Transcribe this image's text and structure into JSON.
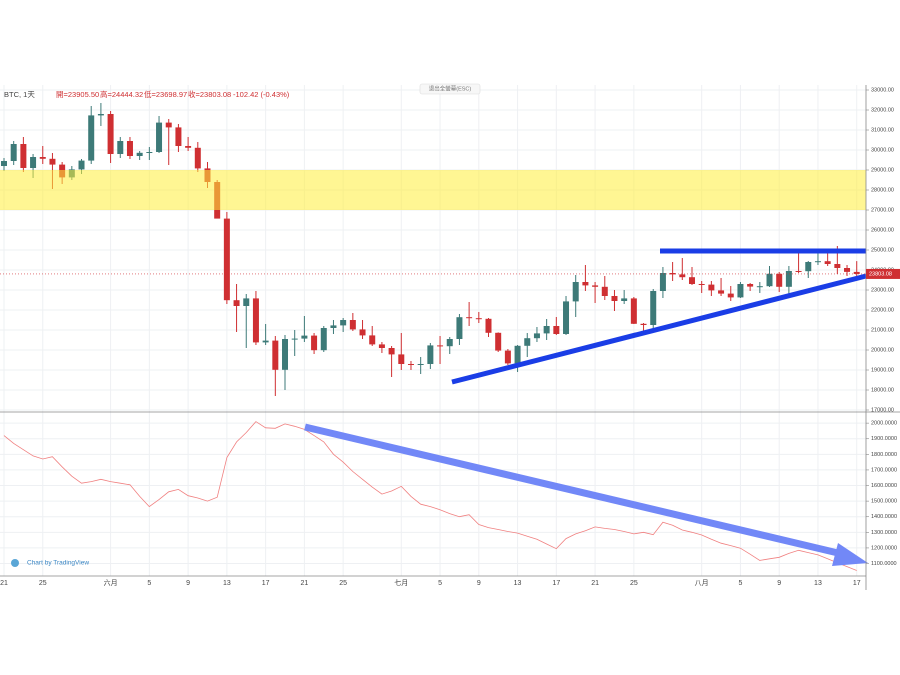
{
  "header": {
    "symbol": "BTC, 1天",
    "open": "開=23905.50",
    "high": "高=24444.32",
    "low": "低=23698.97",
    "close": "收=23803.08",
    "change": "-102.42 (-0.43%)",
    "fullscreen_button": "退出全螢幕(ESC)",
    "watermark": "Chart by TradingView"
  },
  "last_price": 23803.08,
  "chart_data": [
    {
      "type": "candlestick",
      "up_color": "#3d7a78",
      "down_color": "#cf2f32",
      "grid": true,
      "categories": [
        "21",
        null,
        null,
        null,
        "25",
        null,
        null,
        null,
        null,
        null,
        null,
        "六月",
        null,
        null,
        null,
        "5",
        null,
        null,
        null,
        "9",
        null,
        null,
        null,
        "13",
        null,
        null,
        null,
        "17",
        null,
        null,
        null,
        "21",
        null,
        null,
        null,
        "25",
        null,
        null,
        null,
        null,
        null,
        "七月",
        null,
        null,
        null,
        "5",
        null,
        null,
        null,
        "9",
        null,
        null,
        null,
        "13",
        null,
        null,
        null,
        "17",
        null,
        null,
        null,
        "21",
        null,
        null,
        null,
        "25",
        null,
        null,
        null,
        null,
        null,
        null,
        "八月",
        null,
        null,
        null,
        "5",
        null,
        null,
        null,
        "9",
        null,
        null,
        null,
        "13",
        null,
        null,
        null,
        "17"
      ],
      "open": [
        29200,
        29450,
        30300,
        29100,
        29650,
        29560,
        29270,
        28630,
        29030,
        29470,
        31730,
        31800,
        29800,
        30450,
        29700,
        29860,
        29900,
        31370,
        31130,
        30200,
        30110,
        29080,
        28400,
        26570,
        22490,
        22200,
        22580,
        20380,
        20470,
        19010,
        20550,
        20570,
        20720,
        19990,
        21100,
        21230,
        21500,
        21030,
        20730,
        20280,
        20100,
        19780,
        19300,
        19250,
        19300,
        20230,
        20190,
        20550,
        21640,
        21590,
        21560,
        20860,
        19970,
        19330,
        20210,
        20590,
        20830,
        21200,
        20800,
        22430,
        23400,
        23230,
        23160,
        22700,
        22450,
        22580,
        21310,
        21250,
        22950,
        23850,
        23780,
        23640,
        23300,
        23270,
        22980,
        22820,
        22630,
        23300,
        23170,
        23190,
        23810,
        23160,
        23950,
        23940,
        24400,
        24440,
        24300,
        24100,
        23905.5
      ],
      "high": [
        29600,
        30450,
        30650,
        29800,
        30200,
        29850,
        29400,
        29200,
        29550,
        32200,
        32350,
        31950,
        30650,
        30650,
        29950,
        30150,
        31700,
        31550,
        31300,
        30650,
        30400,
        29400,
        28500,
        26900,
        23300,
        22800,
        22950,
        21300,
        20700,
        20750,
        21000,
        21700,
        20850,
        21200,
        21500,
        21600,
        21850,
        21500,
        21200,
        20400,
        20200,
        20850,
        19450,
        19650,
        20350,
        20700,
        20650,
        21800,
        22400,
        21900,
        21600,
        20880,
        20050,
        20250,
        20850,
        21150,
        21550,
        21650,
        22700,
        23750,
        24250,
        23400,
        23700,
        23000,
        23000,
        22650,
        21350,
        23050,
        24150,
        24400,
        24600,
        24150,
        23450,
        23450,
        23600,
        23200,
        23400,
        23350,
        23400,
        24200,
        23900,
        24200,
        24900,
        24450,
        24900,
        25000,
        25200,
        24250,
        24444.32
      ],
      "low": [
        28950,
        29250,
        28900,
        28600,
        29300,
        28050,
        28300,
        28500,
        28800,
        29300,
        31200,
        29350,
        29600,
        29550,
        29500,
        29500,
        29850,
        29250,
        29900,
        29950,
        28900,
        28100,
        26600,
        22300,
        20900,
        20100,
        20250,
        20250,
        17700,
        18000,
        19700,
        20400,
        19800,
        19900,
        20800,
        20900,
        20950,
        20550,
        20200,
        19850,
        18650,
        19000,
        19000,
        18800,
        19050,
        19300,
        19800,
        20250,
        21200,
        21350,
        20650,
        19900,
        19250,
        18900,
        19650,
        20400,
        20500,
        20750,
        20750,
        21650,
        22950,
        22350,
        22500,
        21950,
        22300,
        21300,
        20750,
        21050,
        22600,
        23450,
        23500,
        23250,
        22850,
        22700,
        22700,
        22450,
        22600,
        22950,
        22850,
        23150,
        22900,
        22700,
        23850,
        23600,
        24250,
        24200,
        23800,
        23700,
        23698.97
      ],
      "close": [
        29450,
        30300,
        29100,
        29650,
        29560,
        29270,
        28630,
        29030,
        29470,
        31730,
        31800,
        29800,
        30450,
        29700,
        29860,
        29900,
        31370,
        31130,
        30200,
        30110,
        29080,
        28400,
        26570,
        22490,
        22200,
        22580,
        20380,
        20470,
        19010,
        20550,
        20570,
        20720,
        19990,
        21100,
        21230,
        21500,
        21030,
        20730,
        20280,
        20100,
        19780,
        19300,
        19250,
        19300,
        20230,
        20190,
        20550,
        21640,
        21590,
        21560,
        20860,
        19970,
        19330,
        20210,
        20590,
        20830,
        21200,
        20800,
        22430,
        23400,
        23230,
        23160,
        22700,
        22450,
        22580,
        21310,
        21250,
        22950,
        23850,
        23780,
        23640,
        23300,
        23270,
        22980,
        22820,
        22630,
        23300,
        23170,
        23190,
        23810,
        23160,
        23950,
        23940,
        24400,
        24440,
        24300,
        24100,
        23905.5,
        23803.08
      ],
      "ylim": [
        16900,
        33250
      ],
      "yticks": [
        {
          "value": 17000,
          "label": "17000.00"
        },
        {
          "value": 18000,
          "label": "18000.00"
        },
        {
          "value": 19000,
          "label": "19000.00"
        },
        {
          "value": 20000,
          "label": "20000.00"
        },
        {
          "value": 21000,
          "label": "21000.00"
        },
        {
          "value": 22000,
          "label": "22000.00"
        },
        {
          "value": 23000,
          "label": "23000.00"
        },
        {
          "value": 24000,
          "label": "24000.00"
        },
        {
          "value": 25000,
          "label": "25000.00"
        },
        {
          "value": 26000,
          "label": "26000.00"
        },
        {
          "value": 27000,
          "label": "27000.00"
        },
        {
          "value": 28000,
          "label": "28000.00"
        },
        {
          "value": 29000,
          "label": "29000.00"
        },
        {
          "value": 30000,
          "label": "30000.00"
        },
        {
          "value": 31000,
          "label": "31000.00"
        },
        {
          "value": 32000,
          "label": "32000.00"
        },
        {
          "value": 33000,
          "label": "33000.00"
        }
      ]
    },
    {
      "type": "line",
      "color": "#f08080",
      "grid": true,
      "values": [
        1920,
        1870,
        1830,
        1790,
        1770,
        1785,
        1720,
        1660,
        1615,
        1625,
        1640,
        1625,
        1615,
        1605,
        1530,
        1465,
        1510,
        1560,
        1575,
        1535,
        1520,
        1500,
        1525,
        1780,
        1880,
        1940,
        2010,
        1970,
        1967,
        1995,
        1980,
        1960,
        1920,
        1880,
        1800,
        1750,
        1690,
        1640,
        1590,
        1545,
        1565,
        1595,
        1530,
        1480,
        1465,
        1445,
        1420,
        1400,
        1413,
        1350,
        1330,
        1318,
        1305,
        1295,
        1275,
        1255,
        1225,
        1195,
        1260,
        1290,
        1310,
        1335,
        1325,
        1318,
        1305,
        1290,
        1300,
        1285,
        1365,
        1345,
        1315,
        1300,
        1283,
        1255,
        1230,
        1215,
        1198,
        1160,
        1120,
        1130,
        1140,
        1165,
        1185,
        1170,
        1155,
        1130,
        1105,
        1080,
        1055
      ],
      "ylim": [
        1020,
        2065
      ],
      "yticks": [
        {
          "value": 1100,
          "label": "1100.0000"
        },
        {
          "value": 1200,
          "label": "1200.0000"
        },
        {
          "value": 1300,
          "label": "1300.0000"
        },
        {
          "value": 1400,
          "label": "1400.0000"
        },
        {
          "value": 1500,
          "label": "1500.0000"
        },
        {
          "value": 1600,
          "label": "1600.0000"
        },
        {
          "value": 1700,
          "label": "1700.0000"
        },
        {
          "value": 1800,
          "label": "1800.0000"
        },
        {
          "value": 1900,
          "label": "1900.0000"
        },
        {
          "value": 2000,
          "label": "2000.0000"
        }
      ]
    }
  ]
}
